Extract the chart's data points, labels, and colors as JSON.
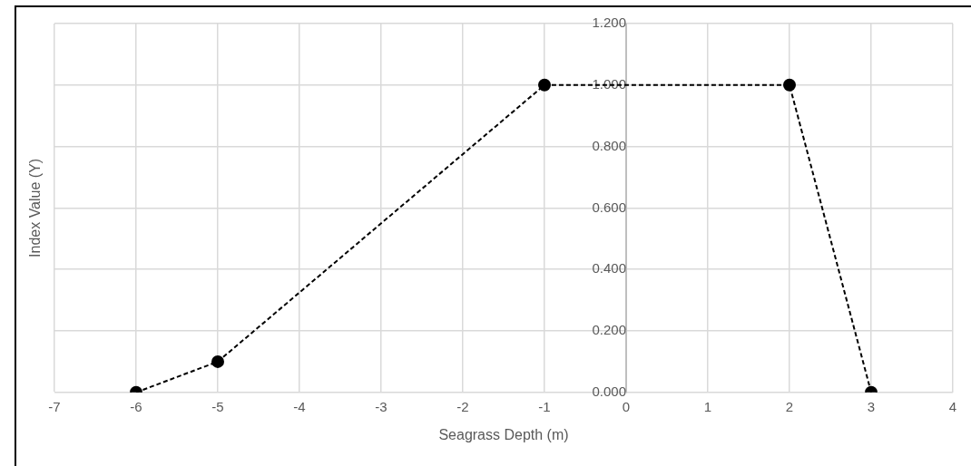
{
  "chart_data": {
    "type": "line",
    "xlabel": "Seagrass Depth (m)",
    "ylabel": "Index Value (Y)",
    "x": [
      -6,
      -5,
      -1,
      2,
      3
    ],
    "series": [
      {
        "color": "#000000",
        "values": [
          0,
          0.1,
          1,
          1,
          0
        ]
      }
    ],
    "xlim": [
      -7,
      4
    ],
    "xticks": [
      -7,
      -6,
      -5,
      -4,
      -3,
      -2,
      -1,
      0,
      1,
      2,
      3,
      4
    ],
    "ylim": [
      0,
      1.2
    ],
    "yticks": [
      {
        "value": 0,
        "label": "0.000"
      },
      {
        "value": 0.2,
        "label": "0.200"
      },
      {
        "value": 0.4,
        "label": "0.400"
      },
      {
        "value": 0.6,
        "label": "0.600"
      },
      {
        "value": 0.8,
        "label": "0.800"
      },
      {
        "value": 1,
        "label": "1.000"
      },
      {
        "value": 1.2,
        "label": "1.200"
      }
    ],
    "grid": true,
    "legend": false,
    "marker": "circle",
    "line_style": "dashed"
  }
}
